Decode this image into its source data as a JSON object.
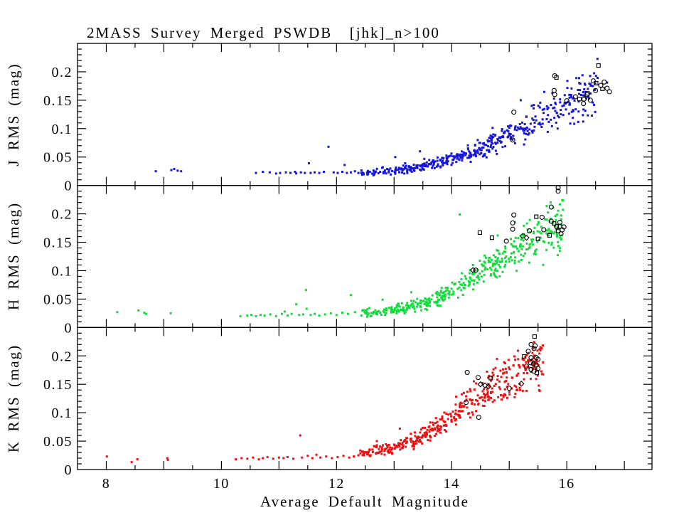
{
  "chart_data": {
    "type": "scatter",
    "title": "2MASS Survey Merged PSWDB  [jhk]_n>100",
    "xlabel": "Average Default Magnitude",
    "x_range": [
      7.5,
      17.48
    ],
    "y_range": [
      0,
      0.25
    ],
    "grid": false,
    "legend": "none",
    "x_tick_values": [
      8,
      10,
      12,
      14,
      16
    ],
    "x_tick_labels": [
      "8",
      "10",
      "12",
      "14",
      "16"
    ],
    "x_minor_step": 0.5,
    "y_tick_values": [
      0,
      0.05,
      0.1,
      0.15,
      0.2
    ],
    "y_tick_labels": [
      "0",
      "0.05",
      "0.1",
      "0.15",
      "0.2"
    ],
    "y_minor_step": 0.01,
    "frame_color": "#000000",
    "panels": [
      {
        "name": "J",
        "ylabel": "J RMS (mag)",
        "color": "#1616d8",
        "sparse": [
          [
            8.86,
            0.025
          ],
          [
            9.13,
            0.027
          ],
          [
            9.18,
            0.029
          ],
          [
            9.24,
            0.026
          ],
          [
            9.3,
            0.025
          ],
          [
            10.6,
            0.022
          ],
          [
            10.72,
            0.024
          ],
          [
            10.84,
            0.023
          ],
          [
            10.95,
            0.021
          ],
          [
            11.02,
            0.022
          ],
          [
            11.12,
            0.023
          ],
          [
            11.2,
            0.022
          ],
          [
            11.28,
            0.024
          ],
          [
            11.3,
            0.021
          ],
          [
            11.38,
            0.023
          ],
          [
            11.45,
            0.022
          ],
          [
            11.52,
            0.039
          ],
          [
            11.55,
            0.022
          ],
          [
            11.62,
            0.023
          ],
          [
            11.7,
            0.022
          ],
          [
            11.78,
            0.024
          ],
          [
            11.86,
            0.068
          ],
          [
            11.95,
            0.023
          ],
          [
            12.02,
            0.022
          ],
          [
            12.1,
            0.024
          ],
          [
            12.14,
            0.036
          ],
          [
            12.18,
            0.022
          ],
          [
            12.25,
            0.023
          ],
          [
            12.32,
            0.025
          ],
          [
            12.38,
            0.022
          ]
        ],
        "ridge": {
          "x_start": 12.4,
          "x_end": 16.55,
          "count": 470,
          "x_power": 0.9,
          "anchors": [
            [
              12.4,
              0.021
            ],
            [
              13.0,
              0.027
            ],
            [
              13.5,
              0.034
            ],
            [
              14.0,
              0.045
            ],
            [
              14.5,
              0.062
            ],
            [
              15.0,
              0.09
            ],
            [
              15.5,
              0.115
            ],
            [
              16.0,
              0.143
            ],
            [
              16.4,
              0.163
            ],
            [
              16.55,
              0.168
            ]
          ]
        },
        "extra": [
          [
            13.02,
            0.05
          ],
          [
            13.45,
            0.06
          ],
          [
            15.2,
            0.15
          ],
          [
            16.01,
            0.184
          ],
          [
            16.7,
            0.181
          ],
          [
            16.45,
            0.175
          ]
        ],
        "black_circles": [
          [
            15.08,
            0.129
          ],
          [
            15.06,
            0.08
          ],
          [
            15.79,
            0.193
          ],
          [
            15.78,
            0.167
          ],
          [
            15.79,
            0.16
          ],
          [
            16.0,
            0.149
          ],
          [
            16.15,
            0.156
          ],
          [
            16.29,
            0.144
          ],
          [
            16.35,
            0.16
          ],
          [
            16.41,
            0.15
          ],
          [
            16.46,
            0.184
          ],
          [
            16.59,
            0.176
          ],
          [
            16.65,
            0.182
          ],
          [
            16.7,
            0.171
          ],
          [
            16.74,
            0.165
          ],
          [
            16.5,
            0.167
          ],
          [
            16.3,
            0.152
          ]
        ],
        "black_squares": [
          [
            16.55,
            0.211
          ],
          [
            16.22,
            0.152
          ],
          [
            16.51,
            0.18
          ],
          [
            16.36,
            0.162
          ],
          [
            16.62,
            0.17
          ],
          [
            15.82,
            0.19
          ]
        ],
        "black_diamonds": []
      },
      {
        "name": "H",
        "ylabel": "H RMS (mag)",
        "color": "#10dc3a",
        "sparse": [
          [
            8.19,
            0.027
          ],
          [
            8.56,
            0.03
          ],
          [
            8.66,
            0.026
          ],
          [
            8.69,
            0.024
          ],
          [
            9.12,
            0.025
          ],
          [
            10.33,
            0.02
          ],
          [
            10.45,
            0.021
          ],
          [
            10.52,
            0.022
          ],
          [
            10.6,
            0.02
          ],
          [
            10.68,
            0.022
          ],
          [
            10.75,
            0.021
          ],
          [
            10.85,
            0.023
          ],
          [
            10.95,
            0.02
          ],
          [
            11.05,
            0.024
          ],
          [
            11.1,
            0.028
          ],
          [
            11.15,
            0.021
          ],
          [
            11.22,
            0.024
          ],
          [
            11.3,
            0.041
          ],
          [
            11.35,
            0.022
          ],
          [
            11.42,
            0.023
          ],
          [
            11.47,
            0.066
          ],
          [
            11.48,
            0.033
          ],
          [
            11.55,
            0.022
          ],
          [
            11.62,
            0.024
          ],
          [
            11.7,
            0.021
          ],
          [
            11.8,
            0.023
          ],
          [
            11.9,
            0.025
          ],
          [
            12.0,
            0.022
          ],
          [
            12.1,
            0.026
          ],
          [
            12.2,
            0.024
          ],
          [
            12.25,
            0.057
          ],
          [
            12.32,
            0.027
          ]
        ],
        "ridge": {
          "x_start": 12.4,
          "x_end": 15.95,
          "count": 430,
          "x_power": 0.85,
          "anchors": [
            [
              12.4,
              0.024
            ],
            [
              13.0,
              0.03
            ],
            [
              13.5,
              0.041
            ],
            [
              14.0,
              0.063
            ],
            [
              14.5,
              0.098
            ],
            [
              15.0,
              0.128
            ],
            [
              15.3,
              0.148
            ],
            [
              15.6,
              0.165
            ],
            [
              15.85,
              0.178
            ],
            [
              15.95,
              0.182
            ]
          ]
        },
        "extra": [
          [
            14.14,
            0.199
          ],
          [
            15.72,
            0.22
          ],
          [
            13.3,
            0.062
          ],
          [
            12.8,
            0.049
          ],
          [
            15.1,
            0.185
          ],
          [
            14.8,
            0.162
          ],
          [
            15.9,
            0.19
          ]
        ],
        "black_circles": [
          [
            15.85,
            0.246
          ],
          [
            15.85,
            0.24
          ],
          [
            15.08,
            0.198
          ],
          [
            15.06,
            0.184
          ],
          [
            15.06,
            0.173
          ],
          [
            15.57,
            0.194
          ],
          [
            15.73,
            0.212
          ],
          [
            15.24,
            0.161
          ],
          [
            14.42,
            0.101
          ],
          [
            15.73,
            0.187
          ],
          [
            15.82,
            0.178
          ],
          [
            15.9,
            0.165
          ],
          [
            15.95,
            0.177
          ],
          [
            15.6,
            0.172
          ],
          [
            15.88,
            0.185
          ],
          [
            15.92,
            0.172
          ],
          [
            14.95,
            0.152
          ],
          [
            15.35,
            0.17
          ]
        ],
        "black_squares": [
          [
            14.49,
            0.167
          ],
          [
            15.47,
            0.195
          ],
          [
            15.78,
            0.183
          ],
          [
            15.85,
            0.17
          ],
          [
            15.7,
            0.162
          ],
          [
            15.5,
            0.156
          ],
          [
            15.88,
            0.178
          ],
          [
            14.7,
            0.158
          ]
        ],
        "black_diamonds": [
          [
            14.37,
            0.101
          ],
          [
            15.3,
            0.158
          ]
        ]
      },
      {
        "name": "K",
        "ylabel": "K RMS (mag)",
        "color": "#ee1111",
        "sparse": [
          [
            8.01,
            0.023
          ],
          [
            8.44,
            0.013
          ],
          [
            8.54,
            0.018
          ],
          [
            9.06,
            0.02
          ],
          [
            9.07,
            0.017
          ],
          [
            10.25,
            0.018
          ],
          [
            10.35,
            0.02
          ],
          [
            10.45,
            0.019
          ],
          [
            10.55,
            0.021
          ],
          [
            10.65,
            0.018
          ],
          [
            10.72,
            0.02
          ],
          [
            10.8,
            0.022
          ],
          [
            10.9,
            0.019
          ],
          [
            11.0,
            0.021
          ],
          [
            11.08,
            0.02
          ],
          [
            11.15,
            0.022
          ],
          [
            11.25,
            0.019
          ],
          [
            11.37,
            0.06
          ],
          [
            11.4,
            0.021
          ],
          [
            11.5,
            0.024
          ],
          [
            11.58,
            0.02
          ],
          [
            11.65,
            0.026
          ],
          [
            11.72,
            0.021
          ],
          [
            11.82,
            0.023
          ],
          [
            11.92,
            0.02
          ],
          [
            12.02,
            0.022
          ],
          [
            12.12,
            0.024
          ],
          [
            12.22,
            0.021
          ],
          [
            12.3,
            0.023
          ],
          [
            12.38,
            0.025
          ]
        ],
        "ridge": {
          "x_start": 12.4,
          "x_end": 15.6,
          "count": 430,
          "x_power": 0.85,
          "anchors": [
            [
              12.4,
              0.027
            ],
            [
              13.0,
              0.038
            ],
            [
              13.5,
              0.059
            ],
            [
              14.0,
              0.094
            ],
            [
              14.5,
              0.131
            ],
            [
              15.0,
              0.163
            ],
            [
              15.3,
              0.178
            ],
            [
              15.55,
              0.188
            ],
            [
              15.6,
              0.19
            ]
          ]
        },
        "extra": [
          [
            14.93,
            0.187
          ],
          [
            15.33,
            0.205
          ],
          [
            13.1,
            0.072
          ],
          [
            12.7,
            0.05
          ],
          [
            15.45,
            0.2
          ]
        ],
        "black_circles": [
          [
            15.38,
            0.22
          ],
          [
            15.45,
            0.218
          ],
          [
            15.43,
            0.213
          ],
          [
            15.38,
            0.197
          ],
          [
            15.47,
            0.197
          ],
          [
            15.5,
            0.194
          ],
          [
            15.37,
            0.188
          ],
          [
            15.42,
            0.186
          ],
          [
            15.47,
            0.184
          ],
          [
            15.38,
            0.176
          ],
          [
            15.43,
            0.173
          ],
          [
            14.27,
            0.171
          ],
          [
            14.46,
            0.162
          ],
          [
            14.25,
            0.118
          ],
          [
            14.47,
            0.092
          ],
          [
            15.0,
            0.143
          ],
          [
            15.33,
            0.208
          ],
          [
            15.5,
            0.178
          ],
          [
            15.3,
            0.182
          ]
        ],
        "black_squares": [
          [
            15.44,
            0.234
          ],
          [
            14.68,
            0.161
          ],
          [
            15.26,
            0.199
          ],
          [
            15.48,
            0.17
          ]
        ],
        "black_diamonds": [
          [
            14.58,
            0.148
          ],
          [
            14.64,
            0.146
          ],
          [
            15.21,
            0.151
          ],
          [
            14.5,
            0.15
          ]
        ]
      }
    ]
  }
}
